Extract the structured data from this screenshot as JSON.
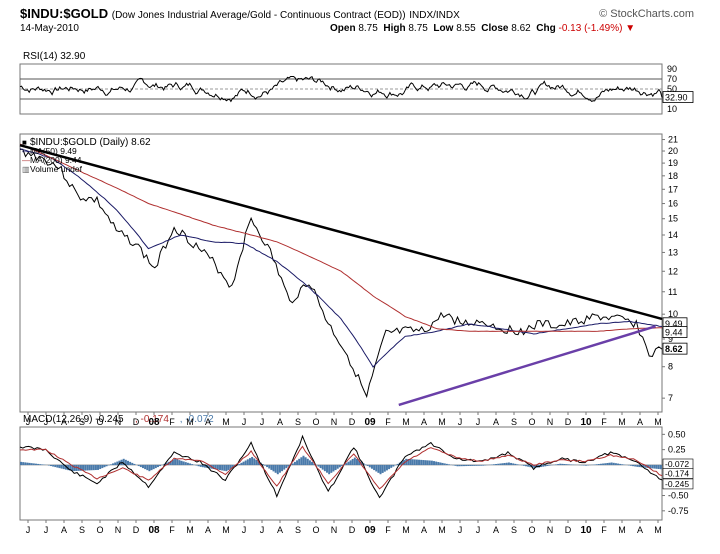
{
  "header": {
    "symbol": "$INDU:$GOLD",
    "description": "(Dow Jones Industrial Average/Gold - Continuous Contract (EOD))",
    "exchange": "INDX/INDX",
    "logo": "© StockCharts.com",
    "date": "14-May-2010",
    "open_label": "Open",
    "open": "8.75",
    "high_label": "High",
    "high": "8.75",
    "low_label": "Low",
    "low": "8.55",
    "close_label": "Close",
    "close": "8.62",
    "chg_label": "Chg",
    "chg": "-0.13 (-1.49%)",
    "chg_arrow": "▼"
  },
  "chart_data": [
    {
      "type": "line",
      "panel": "rsi",
      "title": "RSI(14) 32.90",
      "y_ticks": [
        90,
        70,
        50,
        30,
        10
      ],
      "ylim": [
        0,
        100
      ],
      "reference_lines": [
        70,
        30
      ],
      "last_label": "32.90",
      "series": [
        {
          "name": "RSI(14)",
          "color": "#000000"
        }
      ]
    },
    {
      "type": "line",
      "panel": "price",
      "scale": "log",
      "legend": [
        {
          "label": "$INDU:$GOLD (Daily) 8.62",
          "color": "#000000",
          "marker": "■"
        },
        {
          "label": "MA(50) 9.49",
          "color": "#1a1a66",
          "marker": "—"
        },
        {
          "label": "MA(200) 9.44",
          "color": "#b03030",
          "marker": "—"
        },
        {
          "label": "Volume undef",
          "color": "#666666",
          "marker": "▥"
        }
      ],
      "y_ticks": [
        21,
        20,
        19,
        18,
        17,
        16,
        15,
        14,
        13,
        12,
        11,
        10,
        9,
        8,
        7
      ],
      "ylim": [
        6.6,
        21.5
      ],
      "last_labels": {
        "ma50": "9.49",
        "ma200": "9.44",
        "price": "8.62"
      },
      "series": [
        {
          "name": "$INDU:$GOLD",
          "color": "#000000",
          "x": [
            0,
            0.03,
            0.06,
            0.09,
            0.12,
            0.15,
            0.18,
            0.21,
            0.24,
            0.27,
            0.3,
            0.33,
            0.36,
            0.39,
            0.42,
            0.45,
            0.48,
            0.51,
            0.54,
            0.57,
            0.6,
            0.63,
            0.66,
            0.69,
            0.72,
            0.75,
            0.78,
            0.81,
            0.84,
            0.87,
            0.9,
            0.93,
            0.96,
            0.98,
            1.0
          ],
          "values": [
            20.0,
            19.5,
            18.7,
            16.5,
            16.2,
            14.2,
            13.5,
            12.1,
            14.5,
            13.5,
            12.5,
            11.2,
            15.0,
            13.0,
            10.5,
            11.5,
            9.6,
            8.4,
            7.0,
            9.2,
            9.3,
            9.3,
            10.0,
            9.6,
            9.7,
            9.4,
            9.3,
            9.6,
            9.5,
            9.7,
            9.9,
            9.8,
            9.6,
            8.4,
            8.62
          ]
        },
        {
          "name": "MA(50)",
          "color": "#1a1a66",
          "x": [
            0,
            0.05,
            0.1,
            0.15,
            0.2,
            0.25,
            0.3,
            0.35,
            0.4,
            0.45,
            0.5,
            0.55,
            0.6,
            0.65,
            0.7,
            0.75,
            0.8,
            0.85,
            0.9,
            0.95,
            1.0
          ],
          "values": [
            20.2,
            19.4,
            17.6,
            15.6,
            13.2,
            14.0,
            13.6,
            13.5,
            12.5,
            11.2,
            9.8,
            8.0,
            9.1,
            9.3,
            9.6,
            9.4,
            9.2,
            9.4,
            9.6,
            9.7,
            9.49
          ]
        },
        {
          "name": "MA(200)",
          "color": "#b03030",
          "x": [
            0,
            0.1,
            0.2,
            0.3,
            0.4,
            0.5,
            0.55,
            0.6,
            0.65,
            0.7,
            0.75,
            0.8,
            0.85,
            0.9,
            0.95,
            1.0
          ],
          "values": [
            20.6,
            18.2,
            16.0,
            14.6,
            13.6,
            12.0,
            10.8,
            9.9,
            9.4,
            9.3,
            9.3,
            9.3,
            9.3,
            9.3,
            9.4,
            9.44
          ]
        },
        {
          "name": "Downtrend line",
          "color": "#000000",
          "x": [
            0,
            1.0
          ],
          "values": [
            20.5,
            9.8
          ]
        },
        {
          "name": "Uptrend line",
          "color": "#6a3fa8",
          "x": [
            0.59,
            0.99
          ],
          "values": [
            6.8,
            9.5
          ]
        }
      ]
    },
    {
      "type": "line",
      "panel": "macd",
      "title": "MACD(12,26,9) -0.245, -0.174, -0.072",
      "legend_parts": [
        {
          "text": "MACD(12,26,9) -0.245",
          "color": "#000000"
        },
        {
          "text": ", -0.174",
          "color": "#b03030"
        },
        {
          "text": ", -0.072",
          "color": "#4a7aaa"
        }
      ],
      "y_ticks": [
        0.5,
        0.25,
        0.0,
        -0.25,
        -0.5,
        -0.75
      ],
      "y_tick_labels": [
        "0.50",
        "0.25",
        "0.00",
        "-0.25",
        "-0.50",
        "-0.75"
      ],
      "ylim": [
        -0.9,
        0.62
      ],
      "last_labels": [
        "-0.072",
        "-0.174",
        "-0.245"
      ],
      "series": [
        {
          "name": "MACD",
          "color": "#000000",
          "x": [
            0,
            0.04,
            0.08,
            0.12,
            0.16,
            0.2,
            0.24,
            0.28,
            0.32,
            0.36,
            0.4,
            0.44,
            0.48,
            0.52,
            0.56,
            0.6,
            0.64,
            0.68,
            0.72,
            0.76,
            0.8,
            0.84,
            0.88,
            0.92,
            0.96,
            1.0
          ],
          "values": [
            0.3,
            0.25,
            -0.1,
            -0.3,
            0.05,
            -0.35,
            0.2,
            0.05,
            -0.25,
            0.35,
            -0.5,
            0.45,
            -0.45,
            0.3,
            -0.55,
            0.15,
            0.35,
            0.1,
            0.05,
            0.2,
            -0.05,
            0.1,
            0.05,
            0.2,
            0.05,
            -0.245
          ]
        },
        {
          "name": "Signal",
          "color": "#b03030",
          "x": [
            0,
            0.04,
            0.08,
            0.12,
            0.16,
            0.2,
            0.24,
            0.28,
            0.32,
            0.36,
            0.4,
            0.44,
            0.48,
            0.52,
            0.56,
            0.6,
            0.64,
            0.68,
            0.72,
            0.76,
            0.8,
            0.84,
            0.88,
            0.92,
            0.96,
            1.0
          ],
          "values": [
            0.25,
            0.25,
            0.0,
            -0.22,
            -0.05,
            -0.25,
            0.1,
            0.08,
            -0.15,
            0.22,
            -0.35,
            0.3,
            -0.3,
            0.18,
            -0.4,
            0.05,
            0.28,
            0.12,
            0.06,
            0.16,
            0.0,
            0.08,
            0.06,
            0.16,
            0.08,
            -0.174
          ]
        },
        {
          "name": "Histogram",
          "color": "#4a7aaa",
          "x": [
            0,
            0.04,
            0.08,
            0.12,
            0.16,
            0.2,
            0.24,
            0.28,
            0.32,
            0.36,
            0.4,
            0.44,
            0.48,
            0.52,
            0.56,
            0.6,
            0.64,
            0.68,
            0.72,
            0.76,
            0.8,
            0.84,
            0.88,
            0.92,
            0.96,
            1.0
          ],
          "values": [
            0.05,
            0.0,
            -0.1,
            -0.08,
            0.1,
            -0.1,
            0.1,
            -0.03,
            -0.1,
            0.13,
            -0.15,
            0.15,
            -0.15,
            0.12,
            -0.15,
            0.1,
            0.07,
            -0.02,
            -0.01,
            0.04,
            -0.05,
            0.02,
            -0.01,
            0.04,
            -0.03,
            -0.072
          ]
        }
      ]
    }
  ],
  "x_axis": {
    "labels": [
      "J",
      "J",
      "A",
      "S",
      "O",
      "N",
      "D",
      "08",
      "F",
      "M",
      "A",
      "M",
      "J",
      "J",
      "A",
      "S",
      "O",
      "N",
      "D",
      "09",
      "F",
      "M",
      "A",
      "M",
      "J",
      "J",
      "A",
      "S",
      "O",
      "N",
      "D",
      "10",
      "F",
      "M",
      "A",
      "M"
    ]
  }
}
